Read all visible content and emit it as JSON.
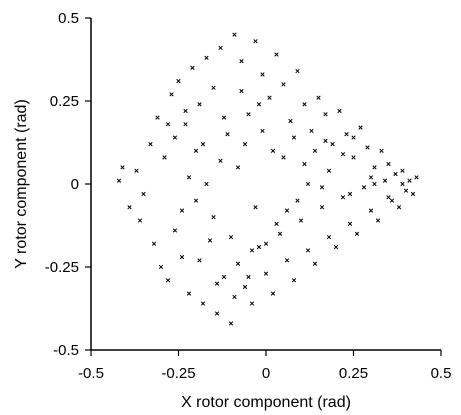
{
  "chart_data": {
    "type": "scatter",
    "title": "",
    "xlabel": "X rotor component (rad)",
    "ylabel": "Y rotor component (rad)",
    "xlim": [
      -0.5,
      0.5
    ],
    "ylim": [
      -0.5,
      0.5
    ],
    "xticks": [
      "-0.5",
      "-0.25",
      "0",
      "0.25",
      "0.5"
    ],
    "yticks": [
      "0.5",
      "0.25",
      "0",
      "-0.25",
      "-0.5"
    ],
    "grid": false,
    "legend": false,
    "marker": "x",
    "marker_color": "#000000",
    "series": [
      {
        "values_note_free": true,
        "points": [
          [
            -0.42,
            0.01
          ],
          [
            -0.41,
            0.05
          ],
          [
            -0.39,
            -0.07
          ],
          [
            -0.37,
            0.04
          ],
          [
            -0.36,
            -0.11
          ],
          [
            -0.35,
            -0.03
          ],
          [
            -0.33,
            0.12
          ],
          [
            -0.32,
            -0.18
          ],
          [
            -0.31,
            0.2
          ],
          [
            -0.3,
            -0.25
          ],
          [
            -0.29,
            0.08
          ],
          [
            -0.28,
            -0.29
          ],
          [
            -0.27,
            0.27
          ],
          [
            -0.26,
            -0.14
          ],
          [
            -0.25,
            0.31
          ],
          [
            -0.24,
            -0.22
          ],
          [
            -0.23,
            0.18
          ],
          [
            -0.22,
            -0.33
          ],
          [
            -0.21,
            0.35
          ],
          [
            -0.2,
            -0.05
          ],
          [
            -0.19,
            0.24
          ],
          [
            -0.18,
            -0.36
          ],
          [
            -0.17,
            0.38
          ],
          [
            -0.16,
            -0.17
          ],
          [
            -0.15,
            0.29
          ],
          [
            -0.14,
            -0.39
          ],
          [
            -0.13,
            0.41
          ],
          [
            -0.12,
            -0.28
          ],
          [
            -0.11,
            0.15
          ],
          [
            -0.1,
            -0.42
          ],
          [
            -0.09,
            0.45
          ],
          [
            -0.08,
            -0.24
          ],
          [
            -0.07,
            0.37
          ],
          [
            -0.06,
            -0.31
          ],
          [
            -0.05,
            0.21
          ],
          [
            -0.04,
            -0.36
          ],
          [
            -0.03,
            0.43
          ],
          [
            -0.02,
            -0.19
          ],
          [
            -0.01,
            0.33
          ],
          [
            0.0,
            -0.27
          ],
          [
            0.01,
            0.26
          ],
          [
            0.02,
            -0.33
          ],
          [
            0.03,
            0.39
          ],
          [
            0.04,
            -0.15
          ],
          [
            0.05,
            0.3
          ],
          [
            0.06,
            -0.23
          ],
          [
            0.07,
            0.19
          ],
          [
            0.08,
            -0.29
          ],
          [
            0.09,
            0.34
          ],
          [
            0.1,
            -0.11
          ],
          [
            0.11,
            0.24
          ],
          [
            0.12,
            -0.2
          ],
          [
            0.13,
            0.16
          ],
          [
            0.14,
            -0.24
          ],
          [
            0.15,
            0.26
          ],
          [
            0.16,
            -0.07
          ],
          [
            0.17,
            0.21
          ],
          [
            0.18,
            -0.16
          ],
          [
            0.19,
            0.12
          ],
          [
            0.2,
            -0.19
          ],
          [
            0.21,
            0.22
          ],
          [
            0.22,
            -0.04
          ],
          [
            0.23,
            0.15
          ],
          [
            0.24,
            -0.12
          ],
          [
            0.25,
            0.08
          ],
          [
            0.26,
            -0.15
          ],
          [
            0.27,
            0.17
          ],
          [
            0.28,
            -0.01
          ],
          [
            0.29,
            0.11
          ],
          [
            0.3,
            -0.08
          ],
          [
            0.31,
            0.05
          ],
          [
            0.32,
            -0.11
          ],
          [
            0.33,
            0.1
          ],
          [
            0.34,
            0.01
          ],
          [
            0.35,
            0.06
          ],
          [
            0.36,
            -0.05
          ],
          [
            0.37,
            0.03
          ],
          [
            0.38,
            -0.07
          ],
          [
            0.39,
            0.04
          ],
          [
            0.4,
            -0.02
          ],
          [
            0.41,
            0.01
          ],
          [
            0.42,
            -0.03
          ],
          [
            0.43,
            0.02
          ],
          [
            -0.18,
            0.12
          ],
          [
            -0.22,
            0.02
          ],
          [
            -0.15,
            -0.1
          ],
          [
            -0.08,
            0.05
          ],
          [
            -0.03,
            -0.07
          ],
          [
            0.05,
            0.08
          ],
          [
            0.12,
            0.0
          ],
          [
            0.18,
            0.04
          ],
          [
            0.24,
            -0.03
          ],
          [
            0.3,
            0.02
          ],
          [
            -0.12,
            0.2
          ],
          [
            -0.07,
            0.28
          ],
          [
            -0.02,
            0.24
          ],
          [
            0.08,
            0.14
          ],
          [
            0.14,
            0.1
          ],
          [
            -0.1,
            -0.16
          ],
          [
            -0.04,
            -0.2
          ],
          [
            0.03,
            -0.12
          ],
          [
            0.09,
            -0.05
          ],
          [
            0.16,
            -0.01
          ],
          [
            0.22,
            0.09
          ],
          [
            -0.26,
            0.14
          ],
          [
            -0.24,
            -0.08
          ],
          [
            -0.19,
            -0.23
          ],
          [
            -0.14,
            -0.3
          ],
          [
            -0.09,
            -0.34
          ],
          [
            -0.05,
            -0.28
          ],
          [
            0.0,
            -0.18
          ],
          [
            0.06,
            -0.08
          ],
          [
            0.11,
            0.06
          ],
          [
            0.17,
            0.13
          ],
          [
            0.25,
            0.14
          ],
          [
            0.31,
            0.0
          ],
          [
            0.35,
            -0.04
          ],
          [
            0.39,
            0.0
          ],
          [
            0.02,
            0.1
          ],
          [
            -0.01,
            0.16
          ],
          [
            -0.06,
            0.12
          ],
          [
            -0.13,
            0.07
          ],
          [
            -0.17,
            0.0
          ],
          [
            -0.2,
            0.1
          ],
          [
            -0.23,
            0.22
          ],
          [
            -0.28,
            0.18
          ]
        ]
      }
    ]
  }
}
